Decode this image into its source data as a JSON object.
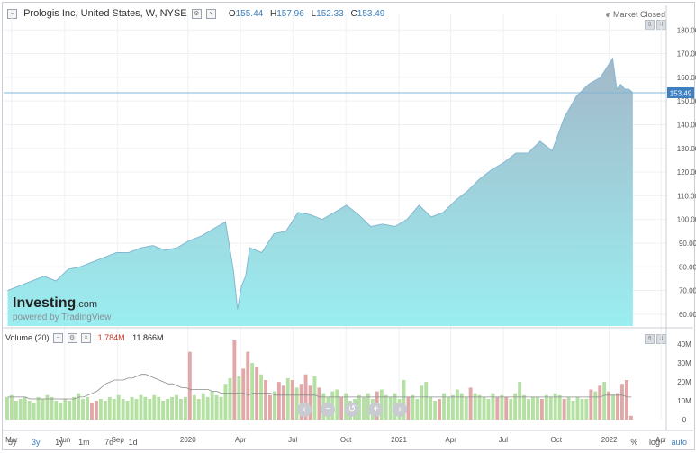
{
  "header": {
    "symbol": "Prologis Inc, United States, W, NYSE",
    "open_label": "O",
    "open": "155.44",
    "high_label": "H",
    "high": "157.96",
    "low_label": "L",
    "low": "152.33",
    "close_label": "C",
    "close": "153.49",
    "status": "Market Closed"
  },
  "volume_header": {
    "label": "Volume (20)",
    "last_volume": "1.784M",
    "ma_value": "11.866M"
  },
  "logo": {
    "brand": "Investing",
    "suffix": ".com",
    "powered": "powered by TradingView"
  },
  "price_tag": "153.49",
  "ranges": [
    "5y",
    "3y",
    "1y",
    "1m",
    "7d",
    "1d"
  ],
  "active_range": "3y",
  "options": [
    "%",
    "log",
    "auto"
  ],
  "colors": {
    "area_top": "#a3b8c9",
    "area_bottom": "#9aeef0",
    "line": "#85b8d1",
    "up_bar": "#b5e0a3",
    "down_bar": "#e0a8a8",
    "ma_line": "#8c8c8c",
    "accent": "#3d7fbf"
  },
  "chart_data": [
    {
      "type": "area",
      "title": "Prologis Inc, United States, W, NYSE",
      "x_tick_labels": [
        "Mar",
        "Jun",
        "Sep",
        "2020",
        "Apr",
        "Jul",
        "Oct",
        "2021",
        "Apr",
        "Jul",
        "Oct",
        "2022",
        "Apr"
      ],
      "x_tick_dates": [
        "2019-03-01",
        "2019-06-01",
        "2019-09-01",
        "2020-01-01",
        "2020-04-01",
        "2020-07-01",
        "2020-10-01",
        "2021-01-01",
        "2021-04-01",
        "2021-07-01",
        "2021-10-01",
        "2022-01-01",
        "2022-04-01"
      ],
      "y_ticks": [
        "180.00",
        "170.00",
        "160.00",
        "150.00",
        "140.00",
        "130.00",
        "120.00",
        "110.00",
        "100.00",
        "90.00",
        "80.00",
        "70.00",
        "60.00"
      ],
      "ylim": [
        55,
        182
      ],
      "xlim": [
        "2019-02-15",
        "2022-04-10"
      ],
      "grid": true,
      "series": [
        {
          "x": [
            "2019-02-22",
            "2019-03-15",
            "2019-04-05",
            "2019-04-26",
            "2019-05-17",
            "2019-06-07",
            "2019-06-28",
            "2019-07-19",
            "2019-08-09",
            "2019-08-30",
            "2019-09-20",
            "2019-10-11",
            "2019-11-01",
            "2019-11-22",
            "2019-12-13",
            "2020-01-03",
            "2020-01-24",
            "2020-02-14",
            "2020-03-06",
            "2020-03-20",
            "2020-03-27",
            "2020-04-03",
            "2020-04-10",
            "2020-04-17",
            "2020-05-08",
            "2020-05-29",
            "2020-06-19",
            "2020-07-10",
            "2020-07-31",
            "2020-08-21",
            "2020-09-11",
            "2020-10-02",
            "2020-10-23",
            "2020-11-13",
            "2020-12-04",
            "2020-12-25",
            "2021-01-15",
            "2021-02-05",
            "2021-02-26",
            "2021-03-19",
            "2021-04-09",
            "2021-04-30",
            "2021-05-21",
            "2021-06-11",
            "2021-07-02",
            "2021-07-23",
            "2021-08-13",
            "2021-09-03",
            "2021-09-24",
            "2021-10-15",
            "2021-11-05",
            "2021-11-26",
            "2021-12-17",
            "2022-01-07",
            "2022-01-14",
            "2022-01-21",
            "2022-01-28",
            "2022-02-04",
            "2022-02-11"
          ],
          "values": [
            70,
            72,
            74,
            76,
            74,
            79,
            80,
            82,
            84,
            86,
            86,
            88,
            89,
            87,
            88,
            91,
            93,
            96,
            99,
            78,
            62,
            72,
            76,
            88,
            86,
            94,
            95,
            103,
            102,
            100,
            103,
            106,
            102,
            97,
            98,
            97,
            100,
            106,
            101,
            103,
            108,
            112,
            117,
            121,
            124,
            128,
            128,
            133,
            129,
            143,
            152,
            157,
            160,
            168,
            155,
            157,
            155,
            155,
            153.49
          ]
        }
      ]
    },
    {
      "type": "bar",
      "title": "Volume (20)",
      "y_ticks": [
        "40M",
        "30M",
        "20M",
        "10M",
        "0"
      ],
      "ylim": [
        0,
        42
      ],
      "series": [
        {
          "name": "Volume",
          "values": [
            12,
            13,
            10,
            11,
            12,
            10,
            9,
            12,
            11,
            13,
            12,
            10,
            9,
            11,
            10,
            12,
            14,
            11,
            12,
            9,
            10,
            11,
            10,
            12,
            11,
            13,
            11,
            10,
            12,
            11,
            13,
            12,
            11,
            13,
            12,
            10,
            11,
            12,
            13,
            11,
            12,
            36,
            13,
            11,
            14,
            12,
            15,
            13,
            12,
            19,
            22,
            42,
            23,
            27,
            36,
            30,
            28,
            24,
            21,
            13,
            15,
            20,
            18,
            22,
            21,
            17,
            19,
            24,
            18,
            23,
            17,
            14,
            12,
            15,
            16,
            12,
            14,
            10,
            11,
            13,
            12,
            14,
            11,
            15,
            16,
            13,
            12,
            14,
            11,
            21,
            12,
            13,
            11,
            18,
            20,
            12,
            10,
            11,
            14,
            12,
            13,
            16,
            14,
            12,
            17,
            14,
            13,
            12,
            11,
            14,
            12,
            13,
            12,
            11,
            14,
            20,
            13,
            11,
            12,
            12,
            11,
            13,
            12,
            14,
            13,
            11,
            12,
            10,
            12,
            11,
            11,
            16,
            15,
            18,
            20,
            15,
            13,
            14,
            19,
            21,
            2
          ]
        },
        {
          "name": "Volume MA",
          "values": [
            12,
            12,
            12,
            12,
            12,
            11,
            11,
            11,
            11,
            11,
            11,
            11,
            11,
            11,
            11,
            11,
            12,
            12,
            13,
            14,
            15,
            17,
            19,
            20,
            21,
            21,
            21,
            22,
            22,
            23,
            24,
            24,
            23,
            22,
            21,
            20,
            19,
            19,
            18,
            17,
            17,
            16,
            16,
            16,
            16,
            16,
            15,
            15,
            14,
            14,
            14,
            14,
            14,
            14,
            13,
            14,
            14,
            14,
            14,
            14,
            13,
            13,
            13,
            13,
            13,
            13,
            13,
            13,
            13,
            13,
            12,
            12,
            12,
            12,
            12,
            12,
            12,
            12,
            12,
            12,
            12,
            12,
            12,
            12,
            12,
            12,
            12,
            12,
            12,
            12,
            12,
            12,
            12,
            12,
            12,
            12,
            12,
            12,
            12,
            12,
            12,
            12,
            12,
            12,
            12,
            12,
            12,
            12,
            12,
            12,
            12,
            12,
            12,
            12,
            12,
            12,
            12,
            12,
            12,
            12,
            12,
            12,
            12,
            12,
            12,
            12,
            12,
            12,
            12,
            12,
            12,
            12,
            12,
            12,
            13,
            13,
            13,
            13,
            13,
            12,
            12
          ]
        }
      ]
    }
  ]
}
